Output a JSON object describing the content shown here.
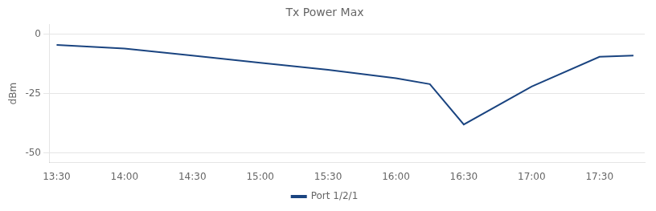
{
  "chart_data": {
    "type": "line",
    "title": "Tx Power Max",
    "ylabel": "dBm",
    "x": [
      0,
      30,
      60,
      90,
      120,
      150,
      165,
      180,
      210,
      240,
      255
    ],
    "series": [
      {
        "name": "Port 1/2/1",
        "color": "#1a4480",
        "values": [
          -4.5,
          -6,
          -9,
          -12,
          -15,
          -18.5,
          -21,
          -38,
          -22,
          -9.5,
          -9
        ]
      }
    ],
    "xlim": [
      -3,
      260
    ],
    "xticks": [
      {
        "value": 0,
        "label": "13:30"
      },
      {
        "value": 30,
        "label": "14:00"
      },
      {
        "value": 60,
        "label": "14:30"
      },
      {
        "value": 90,
        "label": "15:00"
      },
      {
        "value": 120,
        "label": "15:30"
      },
      {
        "value": 150,
        "label": "16:00"
      },
      {
        "value": 180,
        "label": "16:30"
      },
      {
        "value": 210,
        "label": "17:00"
      },
      {
        "value": 240,
        "label": "17:30"
      }
    ],
    "ylim": [
      -54,
      4
    ],
    "yticks": [
      0,
      -25,
      -50
    ],
    "grid": "y",
    "legend": "bottom"
  }
}
